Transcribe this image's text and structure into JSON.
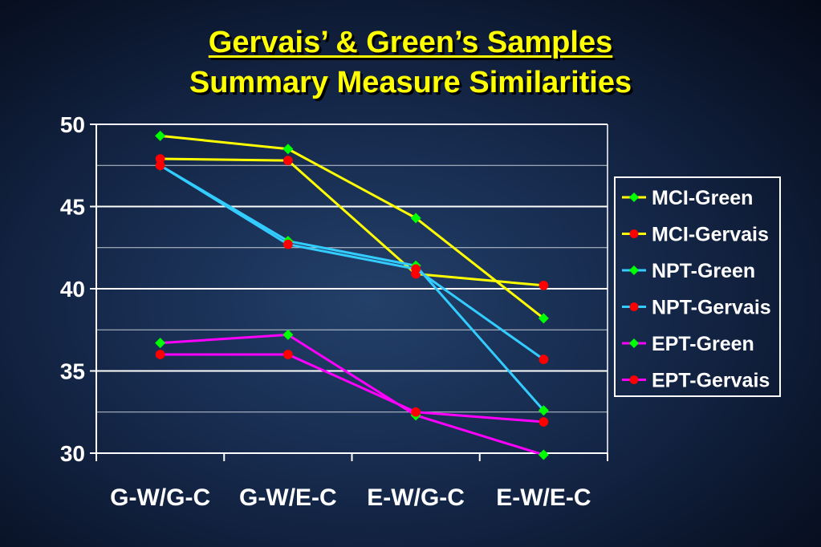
{
  "title_line1": "Gervais’ & Green’s Samples",
  "title_line2": "Summary Measure Similarities",
  "colors": {
    "background": "#15284a",
    "title": "#ffff00",
    "axis": "#ffffff",
    "yellow": "#ffff00",
    "cyan": "#33ccff",
    "magenta": "#ff00ff",
    "green_marker": "#00ff00",
    "red_marker": "#ff0000"
  },
  "chart_data": {
    "type": "line",
    "categories": [
      "G-W/G-C",
      "G-W/E-C",
      "E-W/G-C",
      "E-W/E-C"
    ],
    "ylim": [
      30,
      50
    ],
    "yticks": [
      30,
      35,
      40,
      45,
      50
    ],
    "grid": true,
    "legend_position": "right",
    "series": [
      {
        "name": "MCI-Green",
        "values": [
          49.3,
          48.5,
          44.3,
          38.2
        ],
        "color": "#ffff00",
        "marker": "diamond",
        "marker_color": "#00ff00"
      },
      {
        "name": "MCI-Gervais",
        "values": [
          47.9,
          47.8,
          40.9,
          40.2
        ],
        "color": "#ffff00",
        "marker": "circle",
        "marker_color": "#ff0000"
      },
      {
        "name": "NPT-Green",
        "values": [
          47.5,
          42.9,
          41.4,
          32.6
        ],
        "color": "#33ccff",
        "marker": "diamond",
        "marker_color": "#00ff00"
      },
      {
        "name": "NPT-Gervais",
        "values": [
          47.5,
          42.7,
          41.2,
          35.7
        ],
        "color": "#33ccff",
        "marker": "circle",
        "marker_color": "#ff0000"
      },
      {
        "name": "EPT-Green",
        "values": [
          36.7,
          37.2,
          32.3,
          29.9
        ],
        "color": "#ff00ff",
        "marker": "diamond",
        "marker_color": "#00ff00"
      },
      {
        "name": "EPT-Gervais",
        "values": [
          36.0,
          36.0,
          32.5,
          31.9
        ],
        "color": "#ff00ff",
        "marker": "circle",
        "marker_color": "#ff0000"
      }
    ]
  }
}
